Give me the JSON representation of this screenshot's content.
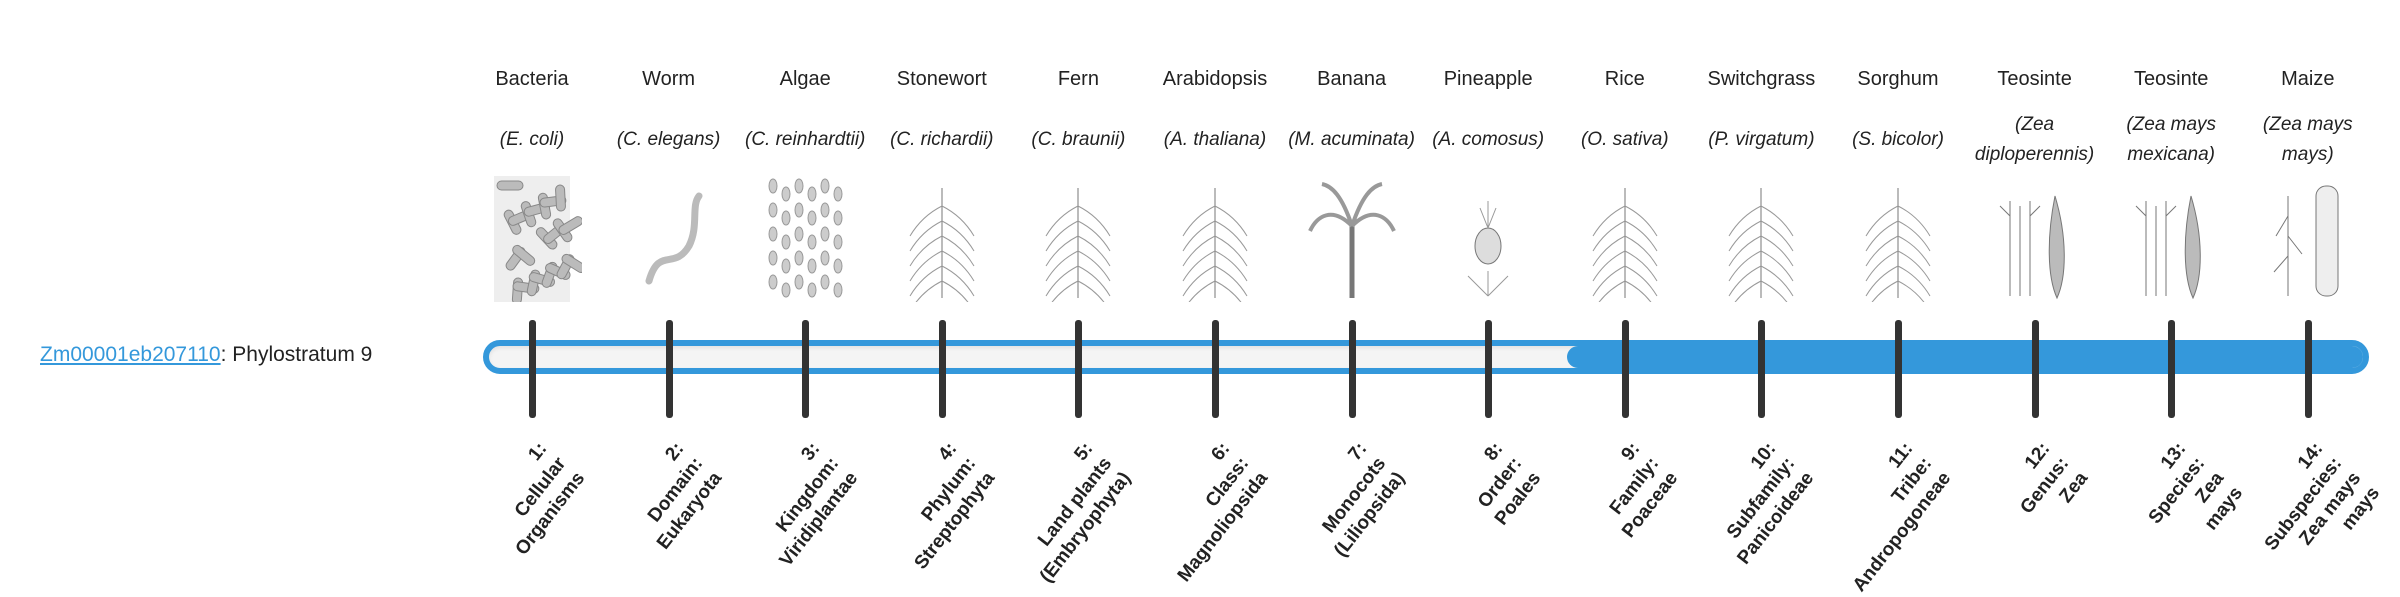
{
  "gene": {
    "id": "Zm00001eb207110",
    "suffix": ": Phylostratum 9"
  },
  "phylostratum": {
    "current": 9,
    "total": 14
  },
  "colors": {
    "accent": "#3498db",
    "tick": "#333333",
    "track": "#f4f4f4"
  },
  "organisms": [
    {
      "common": "Bacteria",
      "scientific": "(E. coli)",
      "icon": "bacteria-icon"
    },
    {
      "common": "Worm",
      "scientific": "(C. elegans)",
      "icon": "worm-icon"
    },
    {
      "common": "Algae",
      "scientific": "(C. reinhardtii)",
      "icon": "algae-icon"
    },
    {
      "common": "Stonewort",
      "scientific": "(C. richardii)",
      "icon": "stonewort-icon"
    },
    {
      "common": "Fern",
      "scientific": "(C. braunii)",
      "icon": "fern-icon"
    },
    {
      "common": "Arabidopsis",
      "scientific": "(A. thaliana)",
      "icon": "arabidopsis-icon"
    },
    {
      "common": "Banana",
      "scientific": "(M. acuminata)",
      "icon": "banana-icon"
    },
    {
      "common": "Pineapple",
      "scientific": "(A. comosus)",
      "icon": "pineapple-icon"
    },
    {
      "common": "Rice",
      "scientific": "(O. sativa)",
      "icon": "rice-icon"
    },
    {
      "common": "Switchgrass",
      "scientific": "(P. virgatum)",
      "icon": "switchgrass-icon"
    },
    {
      "common": "Sorghum",
      "scientific": "(S. bicolor)",
      "icon": "sorghum-icon"
    },
    {
      "common": "Teosinte",
      "scientific": "(Zea diploperennis)",
      "icon": "teosinte-icon"
    },
    {
      "common": "Teosinte",
      "scientific": "(Zea mays mexicana)",
      "icon": "teosinte-icon"
    },
    {
      "common": "Maize",
      "scientific": "(Zea mays mays)",
      "icon": "maize-icon"
    }
  ],
  "strata": [
    {
      "lines": [
        "1:",
        "Cellular",
        "Organisms"
      ]
    },
    {
      "lines": [
        "2:",
        "Domain:",
        "Eukaryota"
      ]
    },
    {
      "lines": [
        "3:",
        "Kingdom:",
        "Viridiplantae"
      ]
    },
    {
      "lines": [
        "4:",
        "Phylum:",
        "Streptophyta"
      ]
    },
    {
      "lines": [
        "5:",
        "Land plants",
        "(Embryophyta)"
      ]
    },
    {
      "lines": [
        "6:",
        "Class:",
        "Magnoliopsida"
      ]
    },
    {
      "lines": [
        "7:",
        "Monocots",
        "(Liliopsida)"
      ]
    },
    {
      "lines": [
        "8:",
        "Order:",
        "Poales"
      ]
    },
    {
      "lines": [
        "9:",
        "Family:",
        "Poaceae"
      ]
    },
    {
      "lines": [
        "10:",
        "Subfamily:",
        "Panicoideae"
      ]
    },
    {
      "lines": [
        "11:",
        "Tribe:",
        "Andropogoneae"
      ]
    },
    {
      "lines": [
        "12:",
        "Genus:",
        "Zea"
      ]
    },
    {
      "lines": [
        "13:",
        "Species:",
        "Zea",
        "mays"
      ]
    },
    {
      "lines": [
        "14:",
        "Subspecies:",
        "Zea mays",
        "mays"
      ]
    }
  ]
}
